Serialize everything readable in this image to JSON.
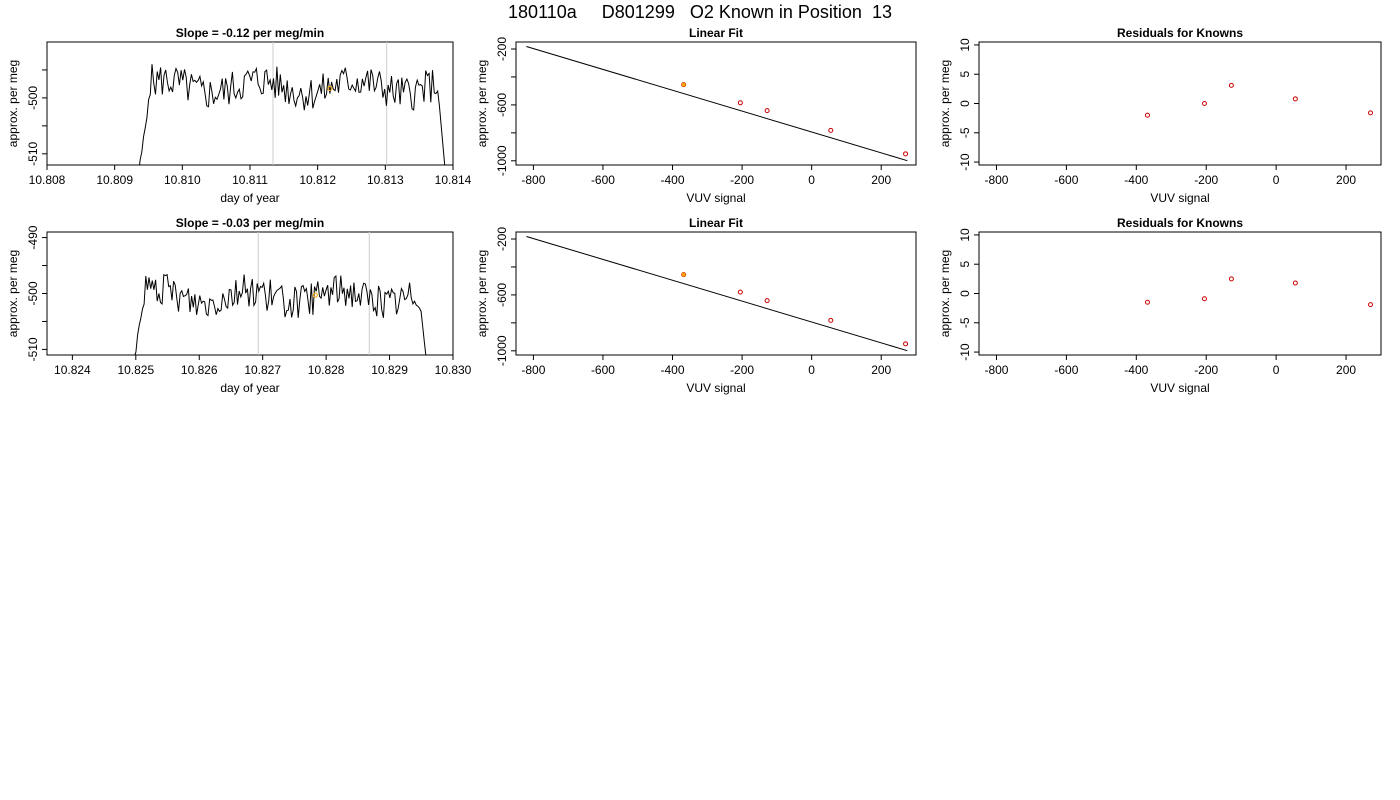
{
  "title": "180110a     D801299   O2 Known in Position  13",
  "chart_data": [
    {
      "type": "line",
      "title": "Slope =  -0.12  per meg/min",
      "xlabel": "day of year",
      "ylabel": "approx. per meg",
      "xlim": [
        10.808,
        10.814
      ],
      "ylim": [
        -512,
        -490
      ],
      "xticks": [
        "10.808",
        "10.809",
        "10.810",
        "10.811",
        "10.812",
        "10.813",
        "10.814"
      ],
      "yticks": [
        "-510",
        "",
        "-500",
        ""
      ],
      "ytick_values": [
        -510,
        -505,
        -500,
        -495
      ],
      "x_start": 10.80935,
      "x_end": 10.8139,
      "baseline": -498.0,
      "noise_amplitude": 3.2,
      "vlines": [
        10.81134,
        10.81302
      ],
      "vline_color": "#cccccc",
      "highlight_point": {
        "x": 10.81218,
        "y": -498.3,
        "color": "#ffa500"
      },
      "line_color": "#000000"
    },
    {
      "type": "scatter",
      "title": "Linear Fit",
      "xlabel": "VUV signal",
      "ylabel": "approx. per meg",
      "xlim": [
        -850,
        300
      ],
      "ylim": [
        -1030,
        -150
      ],
      "xticks": [
        "-800",
        "-600",
        "-400",
        "-200",
        "0",
        "200"
      ],
      "xtick_values": [
        -800,
        -600,
        -400,
        -200,
        0,
        200
      ],
      "yticks": [
        "-1000",
        "",
        "-600",
        "",
        "-200"
      ],
      "ytick_values": [
        -1000,
        -800,
        -600,
        -400,
        -200
      ],
      "fit_line": {
        "x": [
          -820,
          275
        ],
        "y": [
          -182,
          -999
        ]
      },
      "points_x": [
        -368,
        -205,
        -128,
        55,
        270
      ],
      "points_y": [
        -455,
        -585,
        -641,
        -782,
        -950
      ],
      "point_color": "#cc0000",
      "highlight_point": {
        "x": -368,
        "y": -455,
        "color": "#ffa500"
      }
    },
    {
      "type": "scatter",
      "title": "Residuals for Knowns",
      "xlabel": "VUV signal",
      "ylabel": "approx. per meg",
      "xlim": [
        -850,
        300
      ],
      "ylim": [
        -10.5,
        10.5
      ],
      "xticks": [
        "-800",
        "-600",
        "-400",
        "-200",
        "0",
        "200"
      ],
      "xtick_values": [
        -800,
        -600,
        -400,
        -200,
        0,
        200
      ],
      "yticks": [
        "-10",
        "-5",
        "0",
        "5",
        "10"
      ],
      "ytick_values": [
        -10,
        -5,
        0,
        5,
        10
      ],
      "points_x": [
        -368,
        -205,
        -128,
        55,
        270
      ],
      "points_y": [
        -2.0,
        0.0,
        3.1,
        0.8,
        -1.6
      ],
      "point_color": "#cc0000"
    },
    {
      "type": "line",
      "title": "Slope =  -0.03  per meg/min",
      "xlabel": "day of year",
      "ylabel": "approx. per meg",
      "xlim": [
        10.8236,
        10.83
      ],
      "ylim": [
        -511,
        -489
      ],
      "xticks": [
        "10.824",
        "10.825",
        "10.826",
        "10.827",
        "10.828",
        "10.829",
        "10.830"
      ],
      "yticks": [
        "-510",
        "",
        "-500",
        "",
        "-490"
      ],
      "ytick_values": [
        -510,
        -505,
        -500,
        -495,
        -490
      ],
      "x_start": 10.82495,
      "x_end": 10.8296,
      "baseline": -500.5,
      "noise_amplitude": 3.0,
      "vlines": [
        10.82693,
        10.82868
      ],
      "vline_color": "#cccccc",
      "highlight_point": {
        "x": 10.82783,
        "y": -500.3,
        "color": "#ffa500"
      },
      "line_color": "#000000"
    },
    {
      "type": "scatter",
      "title": "Linear Fit",
      "xlabel": "VUV signal",
      "ylabel": "approx. per meg",
      "xlim": [
        -850,
        300
      ],
      "ylim": [
        -1030,
        -150
      ],
      "xticks": [
        "-800",
        "-600",
        "-400",
        "-200",
        "0",
        "200"
      ],
      "xtick_values": [
        -800,
        -600,
        -400,
        -200,
        0,
        200
      ],
      "yticks": [
        "-1000",
        "",
        "-600",
        "",
        "-200"
      ],
      "ytick_values": [
        -1000,
        -800,
        -600,
        -400,
        -200
      ],
      "fit_line": {
        "x": [
          -820,
          275
        ],
        "y": [
          -182,
          -999
        ]
      },
      "points_x": [
        -368,
        -205,
        -128,
        55,
        270
      ],
      "points_y": [
        -455,
        -580,
        -641,
        -782,
        -950
      ],
      "point_color": "#cc0000",
      "highlight_point": {
        "x": -368,
        "y": -455,
        "color": "#ffa500"
      }
    },
    {
      "type": "scatter",
      "title": "Residuals for Knowns",
      "xlabel": "VUV signal",
      "ylabel": "approx. per meg",
      "xlim": [
        -850,
        300
      ],
      "ylim": [
        -10.5,
        10.5
      ],
      "xticks": [
        "-800",
        "-600",
        "-400",
        "-200",
        "0",
        "200"
      ],
      "xtick_values": [
        -800,
        -600,
        -400,
        -200,
        0,
        200
      ],
      "yticks": [
        "-10",
        "-5",
        "0",
        "5",
        "10"
      ],
      "ytick_values": [
        -10,
        -5,
        0,
        5,
        10
      ],
      "points_x": [
        -368,
        -205,
        -128,
        55,
        270
      ],
      "points_y": [
        -1.5,
        -0.9,
        2.5,
        1.8,
        -1.9
      ],
      "point_color": "#cc0000"
    }
  ]
}
